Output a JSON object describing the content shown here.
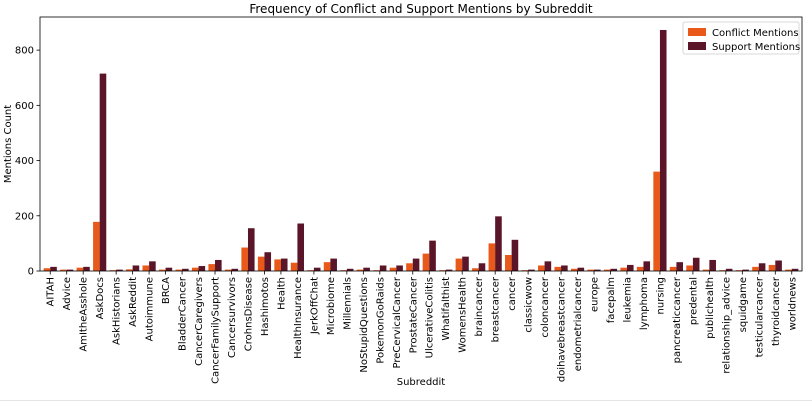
{
  "chart_data": {
    "type": "bar",
    "title": "Frequency of Conflict and Support Mentions by Subreddit",
    "xlabel": "Subreddit",
    "ylabel": "Mentions Count",
    "ylim": [
      0,
      920
    ],
    "yticks": [
      0,
      200,
      400,
      600,
      800
    ],
    "legend_position": "top-right",
    "grid": false,
    "categories": [
      "AITAH",
      "Advice",
      "AmItheAsshole",
      "AskDocs",
      "AskHistorians",
      "AskReddit",
      "Autoimmune",
      "BRCA",
      "BladderCancer",
      "CancerCaregivers",
      "CancerFamilySupport",
      "Cancersurvivors",
      "CrohnsDisease",
      "Hashimotos",
      "Health",
      "HealthInsurance",
      "JerkOffChat",
      "Microbiome",
      "Millennials",
      "NoStupidQuestions",
      "PokemonGoRaids",
      "PreCervicalCancer",
      "ProstateCancer",
      "UlcerativeColitis",
      "Whatifalthist",
      "WomensHealth",
      "braincancer",
      "breastcancer",
      "cancer",
      "classicwow",
      "coloncancer",
      "doihavebreastcancer",
      "endometrialcancer",
      "europe",
      "facepalm",
      "leukemia",
      "lymphoma",
      "nursing",
      "pancreaticcancer",
      "predental",
      "publichealth",
      "relationship_advice",
      "squidgame",
      "testicularcancer",
      "thyroidcancer",
      "worldnews"
    ],
    "series": [
      {
        "name": "Conflict Mentions",
        "color": "#e8591a",
        "values": [
          10,
          5,
          12,
          178,
          3,
          6,
          20,
          5,
          5,
          12,
          25,
          5,
          85,
          52,
          42,
          30,
          3,
          32,
          3,
          5,
          3,
          12,
          28,
          63,
          3,
          45,
          10,
          100,
          58,
          3,
          20,
          15,
          8,
          5,
          5,
          12,
          15,
          360,
          15,
          20,
          5,
          3,
          3,
          15,
          22,
          5
        ]
      },
      {
        "name": "Support Mentions",
        "color": "#5b1528",
        "values": [
          15,
          5,
          15,
          715,
          5,
          20,
          35,
          12,
          8,
          18,
          40,
          8,
          155,
          68,
          45,
          172,
          12,
          45,
          8,
          12,
          20,
          20,
          45,
          110,
          5,
          52,
          28,
          198,
          113,
          5,
          35,
          20,
          12,
          5,
          8,
          22,
          35,
          873,
          32,
          48,
          40,
          8,
          5,
          28,
          38,
          8
        ]
      }
    ]
  }
}
